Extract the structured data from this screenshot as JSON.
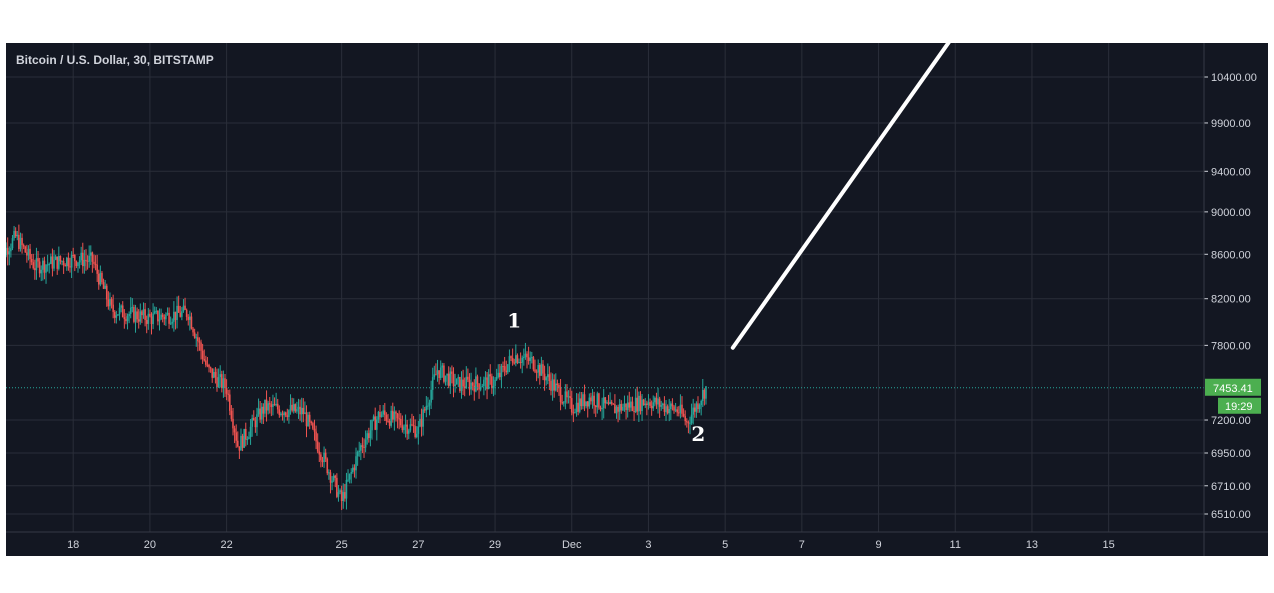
{
  "chart_data": {
    "type": "candlestick",
    "title": "Bitcoin / U.S. Dollar, 30, BITSTAMP",
    "x_ticks": [
      "18",
      "20",
      "22",
      "25",
      "27",
      "29",
      "Dec",
      "3",
      "5",
      "7",
      "9",
      "11",
      "13",
      "15"
    ],
    "y_ticks": [
      "10400.00",
      "9900.00",
      "9400.00",
      "9000.00",
      "8600.00",
      "8200.00",
      "7800.00",
      "7200.00",
      "6950.00",
      "6710.00",
      "6510.00"
    ],
    "y_scale": "log",
    "price_series": {
      "name": "BTCUSD",
      "points": [
        [
          "Nov 16",
          8540
        ],
        [
          "Nov 16.5",
          8760
        ],
        [
          "Nov 17",
          8490
        ],
        [
          "Nov 18",
          8560
        ],
        [
          "Nov 18.5",
          8540
        ],
        [
          "Nov 19",
          8100
        ],
        [
          "Nov 20",
          8030
        ],
        [
          "Nov 21",
          8080
        ],
        [
          "Nov 21.5",
          7600
        ],
        [
          "Nov 22",
          7450
        ],
        [
          "Nov 22.3",
          7000
        ],
        [
          "Nov 23",
          7300
        ],
        [
          "Nov 24",
          7260
        ],
        [
          "Nov 25",
          6600
        ],
        [
          "Nov 25.5",
          7000
        ],
        [
          "Nov 26",
          7250
        ],
        [
          "Nov 27",
          7120
        ],
        [
          "Nov 27.5",
          7600
        ],
        [
          "Nov 28",
          7480
        ],
        [
          "Nov 29",
          7500
        ],
        [
          "Nov 29.5",
          7720
        ],
        [
          "Nov 30",
          7660
        ],
        [
          "Dec 1",
          7300
        ],
        [
          "Dec 1.5",
          7380
        ],
        [
          "Dec 2",
          7280
        ],
        [
          "Dec 3",
          7350
        ],
        [
          "Dec 3.8",
          7270
        ],
        [
          "Dec 4",
          7180
        ],
        [
          "Dec 4.5",
          7453
        ]
      ]
    },
    "last_price": "7453.41",
    "countdown": "19:29",
    "grid": true,
    "annotations": [
      {
        "label": "1",
        "x": "Nov 29.5",
        "y": 7950
      },
      {
        "label": "2",
        "x": "Dec 4.3",
        "y": 7040
      }
    ],
    "projection": {
      "from": {
        "x": "Dec 5.2",
        "y": 7780
      },
      "to": {
        "x": "Dec 11",
        "y": 10900
      }
    }
  },
  "colors": {
    "background": "#131722",
    "grid": "#2a2e39",
    "text": "#d1d4dc",
    "up": "#26a69a",
    "down": "#ef5350",
    "price_line": "#26a69a",
    "price_label": "#4caf50",
    "projection": "#ffffff"
  }
}
